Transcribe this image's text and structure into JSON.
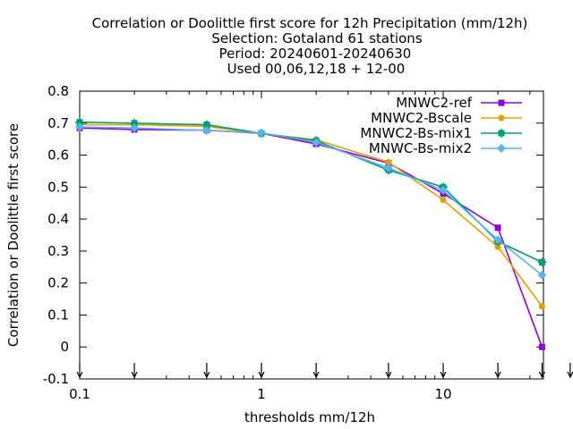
{
  "title_lines": [
    "Correlation or Doolittle first score  for 12h Precipitation (mm/12h)",
    "Selection: Gotaland     61 stations",
    "Period: 20240601-20240630",
    "Used 00,06,12,18 + 12-00"
  ],
  "chart_data": {
    "type": "line",
    "title": "Correlation or Doolittle first score  for 12h Precipitation (mm/12h)",
    "xlabel": "thresholds mm/12h",
    "ylabel": "Correlation or Doolittle first score",
    "xscale": "log",
    "xlim": [
      0.1,
      36
    ],
    "ylim": [
      -0.1,
      0.8
    ],
    "xticks": [
      {
        "value": 0.1,
        "label": "0.1"
      },
      {
        "value": 1,
        "label": "1"
      },
      {
        "value": 10,
        "label": "10"
      }
    ],
    "yticks": [
      {
        "value": 0.8,
        "label": "0.8"
      },
      {
        "value": 0.7,
        "label": "0.7"
      },
      {
        "value": 0.6,
        "label": "0.6"
      },
      {
        "value": 0.5,
        "label": "0.5"
      },
      {
        "value": 0.4,
        "label": "0.4"
      },
      {
        "value": 0.3,
        "label": "0.3"
      },
      {
        "value": 0.2,
        "label": "0.2"
      },
      {
        "value": 0.1,
        "label": "0.1"
      },
      {
        "value": 0,
        "label": "0"
      },
      {
        "value": -0.1,
        "label": "-0.1"
      }
    ],
    "threshold_markers": [
      0.1,
      0.2,
      0.5,
      1,
      2,
      5,
      10,
      20,
      35,
      50
    ],
    "grid": false,
    "legend_position": "top-right",
    "x": [
      0.1,
      0.2,
      0.5,
      1,
      2,
      5,
      10,
      20,
      35
    ],
    "series": [
      {
        "name": "MNWC2-ref",
        "color": "#9400d3",
        "marker": "filled-square",
        "values": [
          0.685,
          0.68,
          0.678,
          0.668,
          0.635,
          0.575,
          0.48,
          0.373,
          0.0
        ]
      },
      {
        "name": "MNWC2-Bscale",
        "color": "#e69f00",
        "marker": "filled-circle",
        "values": [
          0.695,
          0.695,
          0.69,
          0.667,
          0.648,
          0.578,
          0.46,
          0.313,
          0.127
        ]
      },
      {
        "name": "MNWC2-Bs-mix1",
        "color": "#009e73",
        "marker": "filled-star",
        "values": [
          0.703,
          0.7,
          0.695,
          0.668,
          0.645,
          0.553,
          0.5,
          0.33,
          0.265
        ]
      },
      {
        "name": "MNWC-Bs-mix2",
        "color": "#56b4e9",
        "marker": "filled-box",
        "values": [
          0.688,
          0.685,
          0.677,
          0.67,
          0.64,
          0.56,
          0.49,
          0.335,
          0.225
        ]
      }
    ]
  }
}
